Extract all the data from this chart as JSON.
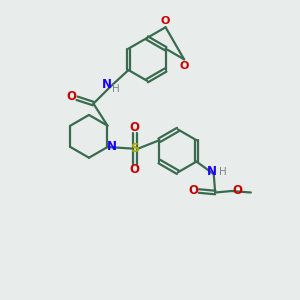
{
  "bg_color": "#e8eceb",
  "bond_color": "#3a6b50",
  "bond_width": 1.6,
  "atom_colors": {
    "N": "#1a00ff",
    "O": "#cc0000",
    "S": "#aaaa00",
    "H": "#7a8888",
    "C": "#3a6b50"
  },
  "font_size": 8.5,
  "fig_w": 3.0,
  "fig_h": 3.0,
  "dpi": 100,
  "xlim": [
    0,
    10
  ],
  "ylim": [
    0,
    10
  ]
}
